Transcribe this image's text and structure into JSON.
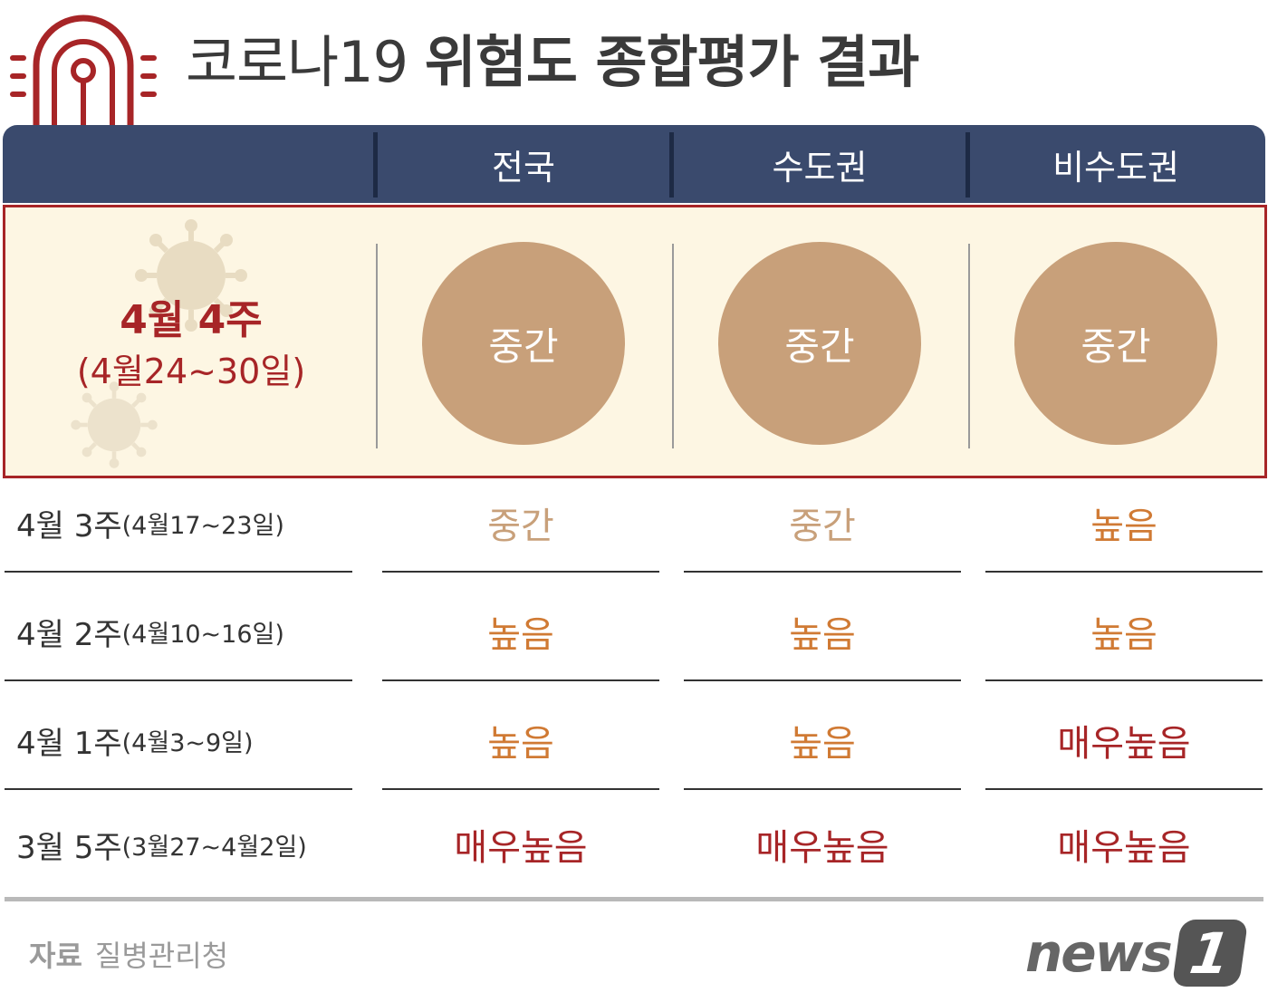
{
  "title": {
    "light": "코로나19 ",
    "bold": "위험도 종합평가 결과"
  },
  "icon": "siren-icon",
  "colors": {
    "navy": "#3a4a6d",
    "red": "#a72527",
    "tan": "#c8a07a",
    "orange": "#d07a34",
    "cream": "#fdf6e3"
  },
  "columns": [
    "전국",
    "수도권",
    "비수도권"
  ],
  "current": {
    "week": "4월 4주",
    "range": "(4월24~30일)",
    "levels": [
      "중간",
      "중간",
      "중간"
    ]
  },
  "rows": [
    {
      "week": "4월 3주",
      "range": "(4월17~23일)",
      "levels": [
        "중간",
        "중간",
        "높음"
      ]
    },
    {
      "week": "4월 2주",
      "range": "(4월10~16일)",
      "levels": [
        "높음",
        "높음",
        "높음"
      ]
    },
    {
      "week": "4월 1주",
      "range": "(4월3~9일)",
      "levels": [
        "높음",
        "높음",
        "매우높음"
      ]
    },
    {
      "week": "3월 5주",
      "range": "(3월27~4월2일)",
      "levels": [
        "매우높음",
        "매우높음",
        "매우높음"
      ]
    }
  ],
  "source": {
    "label": "자료",
    "value": "질병관리청"
  },
  "logo": {
    "text": "news",
    "badge": "1"
  }
}
